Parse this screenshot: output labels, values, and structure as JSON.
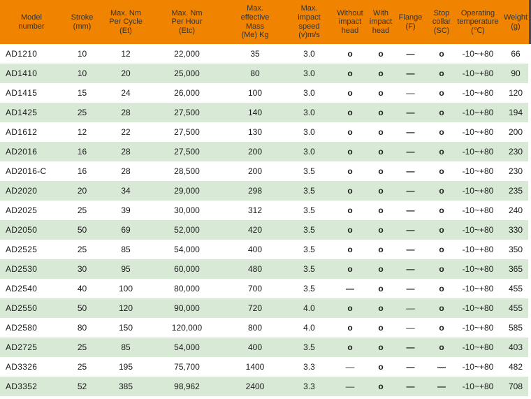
{
  "colors": {
    "header_bg": "#F08300",
    "header_text": "#333333",
    "row_alt_bg": "#D8E9D6",
    "body_text": "#1A1A1A",
    "header_edge": "#4A4A4A"
  },
  "table": {
    "columns": [
      {
        "id": "model",
        "label": "Model\nnumber"
      },
      {
        "id": "stroke",
        "label": "Stroke\n(mm)"
      },
      {
        "id": "et",
        "label": "Max. Nm\nPer Cycle\n(Et)"
      },
      {
        "id": "etc",
        "label": "Max. Nm\nPer Hour\n(Etc)"
      },
      {
        "id": "me",
        "label": "Max.\neffective\nMass\n(Me) Kg"
      },
      {
        "id": "speed",
        "label": "Max.\nimpact\nspeed\n(v)m/s"
      },
      {
        "id": "without",
        "label": "Without\nimpact\nhead"
      },
      {
        "id": "with",
        "label": "With\nimpact\nhead"
      },
      {
        "id": "flange",
        "label": "Flange\n(F)"
      },
      {
        "id": "stop",
        "label": "Stop\ncollar\n(SC)"
      },
      {
        "id": "temp",
        "label": "Operating\ntemperature\n(℃)"
      },
      {
        "id": "weight",
        "label": "Weight\n(g)"
      }
    ],
    "rows": [
      {
        "cells": [
          "AD1210",
          "10",
          "12",
          "22,000",
          "35",
          "3.0",
          "o",
          "o",
          "—",
          "o",
          "-10~+80",
          "66"
        ]
      },
      {
        "cells": [
          "AD1410",
          "10",
          "20",
          "25,000",
          "80",
          "3.0",
          "o",
          "o",
          "—",
          "o",
          "-10~+80",
          "90"
        ]
      },
      {
        "cells": [
          "AD1415",
          "15",
          "24",
          "26,000",
          "100",
          "3.0",
          "o",
          "o",
          "–",
          "o",
          "-10~+80",
          "120"
        ]
      },
      {
        "cells": [
          "AD1425",
          "25",
          "28",
          "27,500",
          "140",
          "3.0",
          "o",
          "o",
          "—",
          "o",
          "-10~+80",
          "194"
        ]
      },
      {
        "cells": [
          "AD1612",
          "12",
          "22",
          "27,500",
          "130",
          "3.0",
          "o",
          "o",
          "—",
          "o",
          "-10~+80",
          "200"
        ]
      },
      {
        "cells": [
          "AD2016",
          "16",
          "28",
          "27,500",
          "200",
          "3.0",
          "o",
          "o",
          "—",
          "o",
          "-10~+80",
          "230"
        ]
      },
      {
        "cells": [
          "AD2016-C",
          "16",
          "28",
          "28,500",
          "200",
          "3.5",
          "o",
          "o",
          "—",
          "o",
          "-10~+80",
          "230"
        ]
      },
      {
        "cells": [
          "AD2020",
          "20",
          "34",
          "29,000",
          "298",
          "3.5",
          "o",
          "o",
          "—",
          "o",
          "-10~+80",
          "235"
        ]
      },
      {
        "cells": [
          "AD2025",
          "25",
          "39",
          "30,000",
          "312",
          "3.5",
          "o",
          "o",
          "—",
          "o",
          "-10~+80",
          "240"
        ]
      },
      {
        "cells": [
          "AD2050",
          "50",
          "69",
          "52,000",
          "420",
          "3.5",
          "o",
          "o",
          "—",
          "o",
          "-10~+80",
          "330"
        ]
      },
      {
        "cells": [
          "AD2525",
          "25",
          "85",
          "54,000",
          "400",
          "3.5",
          "o",
          "o",
          "—",
          "o",
          "-10~+80",
          "350"
        ]
      },
      {
        "cells": [
          "AD2530",
          "30",
          "95",
          "60,000",
          "480",
          "3.5",
          "o",
          "o",
          "—",
          "o",
          "-10~+80",
          "365"
        ]
      },
      {
        "cells": [
          "AD2540",
          "40",
          "100",
          "80,000",
          "700",
          "3.5",
          "—",
          "o",
          "—",
          "o",
          "-10~+80",
          "455"
        ]
      },
      {
        "cells": [
          "AD2550",
          "50",
          "120",
          "90,000",
          "720",
          "4.0",
          "o",
          "o",
          "–",
          "o",
          "-10~+80",
          "455"
        ]
      },
      {
        "cells": [
          "AD2580",
          "80",
          "150",
          "120,000",
          "800",
          "4.0",
          "o",
          "o",
          "–",
          "o",
          "-10~+80",
          "585"
        ]
      },
      {
        "cells": [
          "AD2725",
          "25",
          "85",
          "54,000",
          "400",
          "3.5",
          "o",
          "o",
          "—",
          "o",
          "-10~+80",
          "403"
        ]
      },
      {
        "cells": [
          "AD3326",
          "25",
          "195",
          "75,700",
          "1400",
          "3.3",
          "–",
          "o",
          "—",
          "—",
          "-10~+80",
          "482"
        ]
      },
      {
        "cells": [
          "AD3352",
          "52",
          "385",
          "98,962",
          "2400",
          "3.3",
          "–",
          "o",
          "—",
          "—",
          "-10~+80",
          "708"
        ]
      }
    ]
  }
}
